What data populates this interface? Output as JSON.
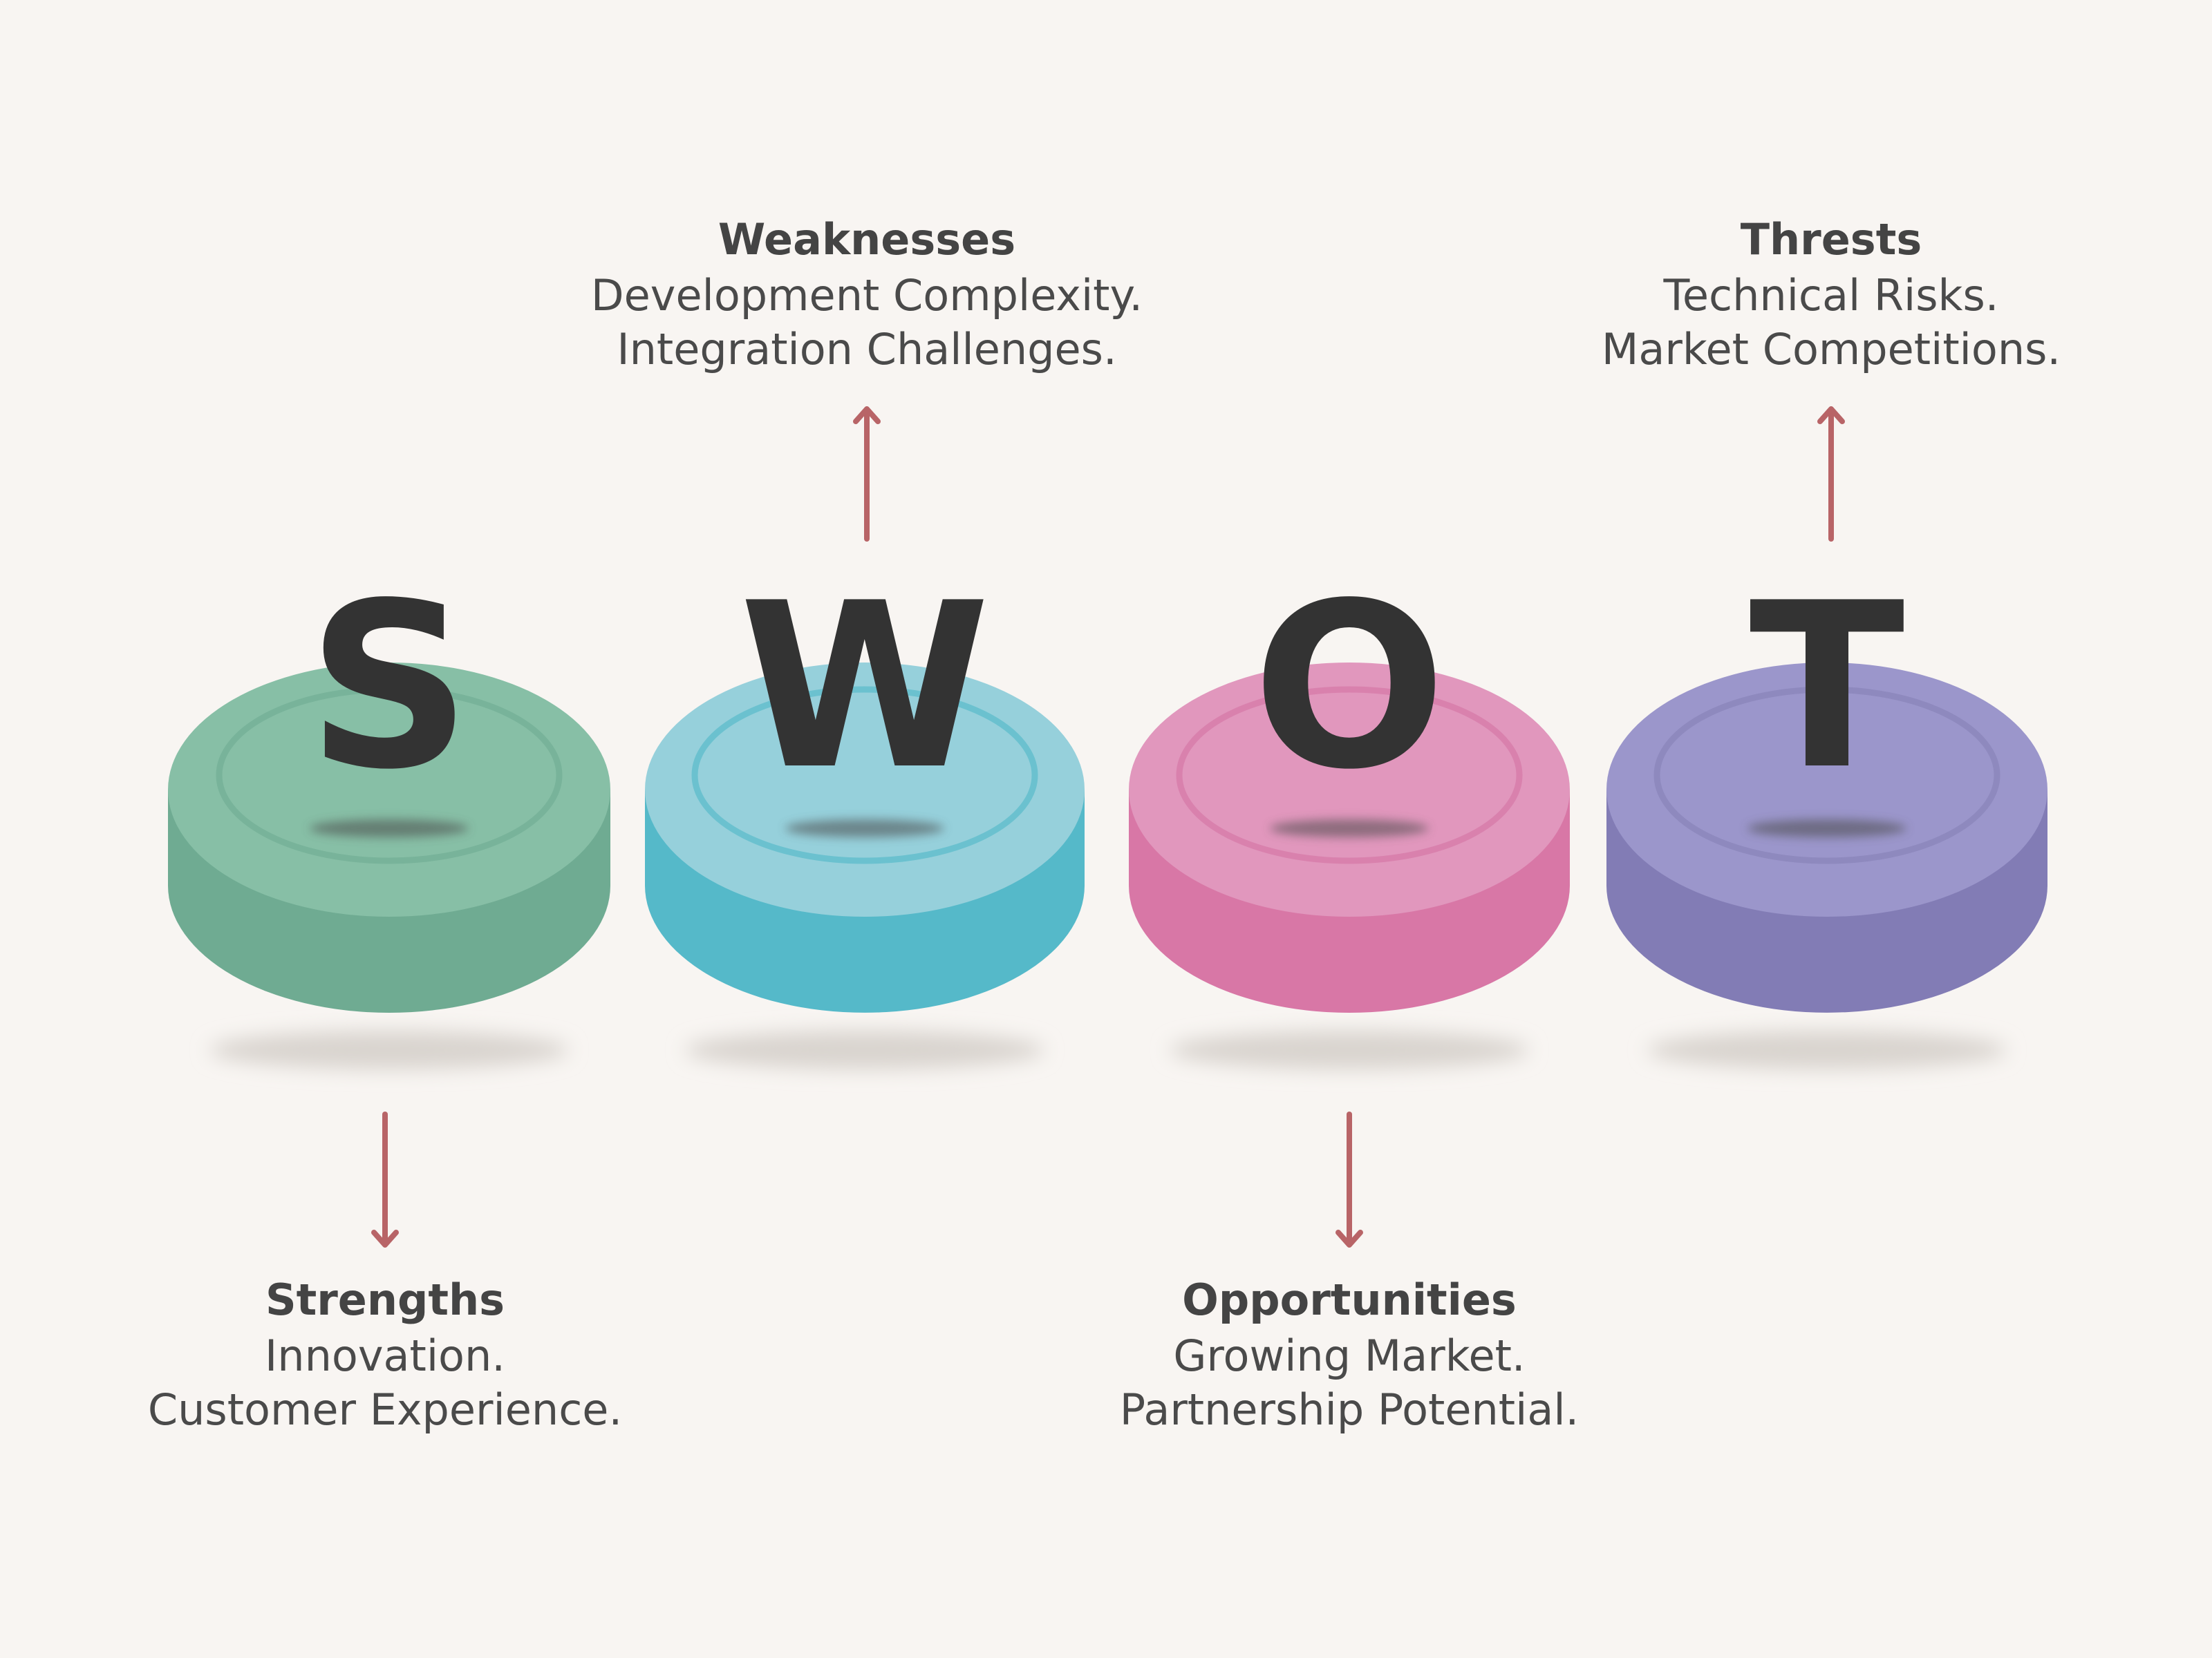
{
  "items": [
    {
      "key": "strengths",
      "letter": "S",
      "title": "Strengths",
      "lines": [
        "Innovation.",
        "Customer Experience."
      ],
      "arrow": "down",
      "colors": {
        "top": "#87bfa6",
        "side": "#6fab92",
        "groove": "#73af95"
      }
    },
    {
      "key": "weaknesses",
      "letter": "W",
      "title": "Weaknesses",
      "lines": [
        "Development Complexity.",
        "Integration Challenges."
      ],
      "arrow": "up",
      "colors": {
        "top": "#96d0db",
        "side": "#55b9c9",
        "groove": "#5cbccb"
      }
    },
    {
      "key": "opportunities",
      "letter": "O",
      "title": "Opportunities",
      "lines": [
        "Growing Market.",
        "Partnership Potential."
      ],
      "arrow": "down",
      "colors": {
        "top": "#e197bd",
        "side": "#d877a6",
        "groove": "#d67aa8"
      }
    },
    {
      "key": "threats",
      "letter": "T",
      "title": "Thrests",
      "lines": [
        "Technical Risks.",
        "Market Competitions."
      ],
      "arrow": "up",
      "colors": {
        "top": "#9b96cb",
        "side": "#827cb5",
        "groove": "#8a84ba"
      }
    }
  ],
  "arrow_color": "#b86467"
}
